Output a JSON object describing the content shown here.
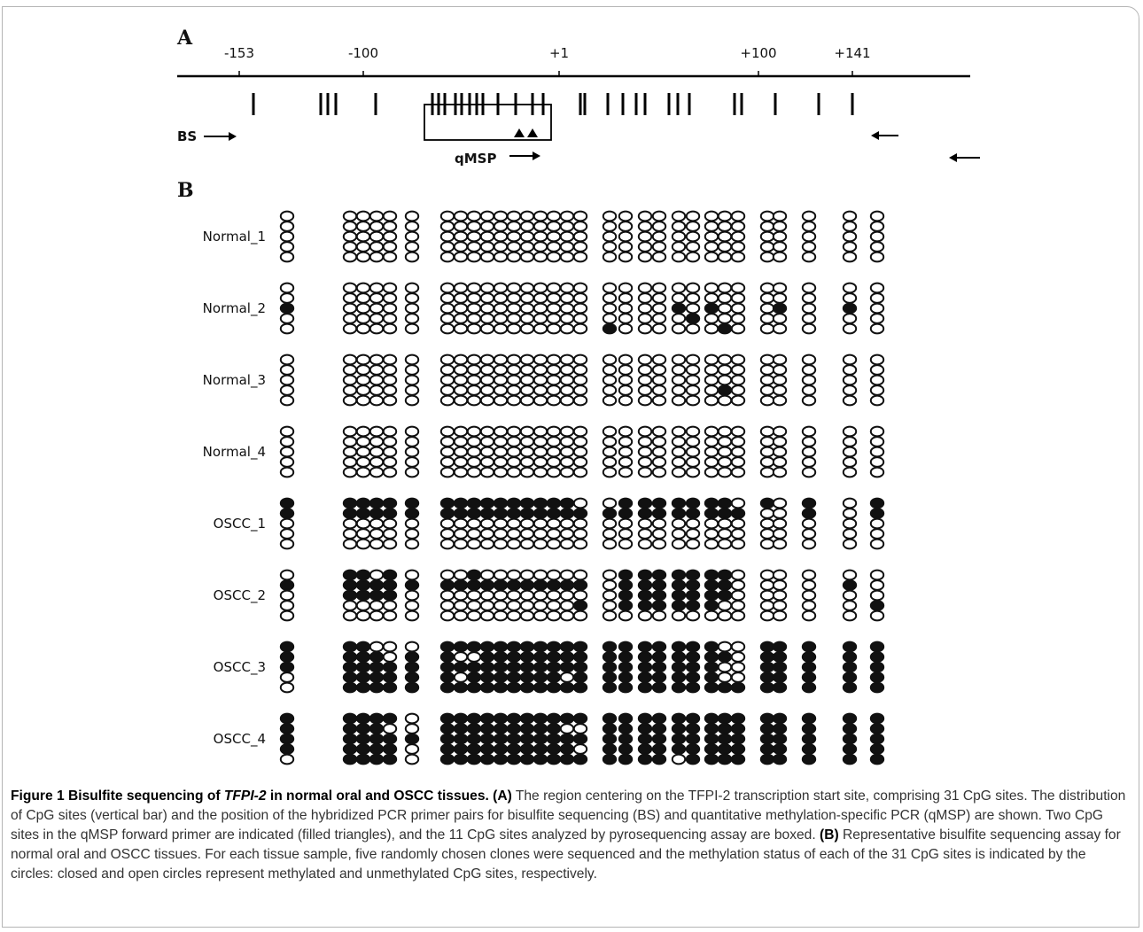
{
  "panel_a": {
    "letter": "A",
    "position_ticks": [
      {
        "label": "-153",
        "pos": -153
      },
      {
        "label": "-100",
        "pos": -100
      },
      {
        "label": "+1",
        "pos": 1
      },
      {
        "label": "+100",
        "pos": 100
      },
      {
        "label": "+141",
        "pos": 141
      }
    ],
    "cpg_sites_count": 31,
    "boxed_sites": 11,
    "bs_label": "BS",
    "qmsp_label": "qMSP"
  },
  "panel_b": {
    "letter": "B",
    "samples": [
      {
        "name": "Normal_1",
        "rows": [
          "U U U U U U U U U U U U U U U U U U U U U U U U U U U U U U U",
          "U U U U U U U U U U U U U U U U U U U U U U U U U U U U U U U",
          "U U U U U U U U U U U U U U U U U U U U U U U U U U U U U U U",
          "U U U U U U U U U U U U U U U U U U U U U U U U U U U U U U U",
          "U U U U U U U U U U U U U U U U U U U U U U U U U U U U U U U"
        ]
      },
      {
        "name": "Normal_2",
        "rows": [
          "U U U U U U U U U U U U U U U U U U U U U U U U U U U U U U U",
          "U U U U U U U U U U U U U U U U U U U U U U U U U U U U U U U",
          "M U U U U U U U U U U U U U U U U U U U U M U M U U U M U M U",
          "U U U U U U U U U U U U U U U U U U U U U U M U U U U U U U U",
          "U U U U U U U U U U U U U U U U U M U U U U U U M U U U U U U"
        ]
      },
      {
        "name": "Normal_3",
        "rows": [
          "U U U U U U U U U U U U U U U U U U U U U U U U U U U U U U U",
          "U U U U U U U U U U U U U U U U U U U U U U U U U U U U U U U",
          "U U U U U U U U U U U U U U U U U U U U U U U U U U U U U U U",
          "U U U U U U U U U U U U U U U U U U U U U U U U M U U U U U U",
          "U U U U U U U U U U U U U U U U U U U U U U U U U U U U U U U"
        ]
      },
      {
        "name": "Normal_4",
        "rows": [
          "U U U U U U U U U U U U U U U U U U U U U U U U U U U U U U U",
          "U U U U U U U U U U U U U U U U U U U U U U U U U U U U U U U",
          "U U U U U U U U U U U U U U U U U U U U U U U U U U U U U U U",
          "U U U U U U U U U U U U U U U U U U U U U U U U U U U U U U U",
          "U U U U U U U U U U U U U U U U U U U U U U U U U U U U U U U"
        ]
      },
      {
        "name": "OSCC_1",
        "rows": [
          "M M M M M M M M M M M M M M M M U U M M M M M M M U M U M U M",
          "M M M M M M M M M M M M M M M M M M M M M M M M M M U U M U M",
          "U U U U U U U U U U U U U U U U U U U U U U U U U U U U U U U",
          "U U U U U U U U U U U U U U U U U U U U U U U U U U U U U U U",
          "U U U U U U U U U U U U U U U U U U U U U U U U U U U U U U U"
        ]
      },
      {
        "name": "OSCC_2",
        "rows": [
          "U M M U M U U U M U U U U U U U U U M M M M M M M U U U U U U",
          "M M M M M M M M M M M M M M M M M U M M M M M M M U U U U M U",
          "U M M M M U U U U U U U U U U U U U M M M M M M M U U U U U U",
          "U U U U U U U U U U U U U U U U M U M M M M M M U U U U U U M",
          "U U U U U U U U U U U U U U U U U U U U U U U U U U U U U U U"
        ]
      },
      {
        "name": "OSCC_3",
        "rows": [
          "M M M U U U M M M M M M M M M M M M M M M M M M U U M M M M M",
          "M M M M U M M U U M M M M M M M M M M M M M M M M U M M M M M",
          "M M M M M M M M M M M M M M M M M M M M M M M M U U M M M M M",
          "U M M M M M M U M M M M M M M U M M M M M M M M U U M M M M M",
          "U M M M M M M M M M M M M M M M M M M M M M M M M M M M M M M"
        ]
      },
      {
        "name": "OSCC_4",
        "rows": [
          "M M M M M U M M M M M M M M M M M M M M M M M M M M M M M M M",
          "M M M M U U M M M M M M M M M U U M M M M M M M M M M M M M M",
          "M M M M M M M M M M M M M M M M M M M M M M M M M M M M M M M",
          "M M M M M U M M M M M M M M M M U M M M M M M M M M M M M M M",
          "U M M M M U M M M M M M M M M M M M M M M U M M M M M M M M M"
        ]
      }
    ]
  },
  "caption": {
    "title_prefix": "Figure 1 Bisulfite sequencing of ",
    "title_gene": "TFPI-2",
    "title_suffix": " in normal oral and OSCC tissues. ",
    "part_a_tag": "(A)",
    "part_a_text": " The region centering on the TFPI-2 transcription start site, comprising 31 CpG sites. The distribution of CpG sites (vertical bar) and the position of the hybridized PCR primer pairs for bisulfite sequencing (BS) and quantitative methylation-specific PCR (qMSP) are shown. Two CpG sites in the qMSP forward primer are indicated (filled triangles), and the 11 CpG sites analyzed by pyrosequencing assay are boxed. ",
    "part_b_tag": "(B)",
    "part_b_text": " Representative bisulfite sequencing assay for normal oral and OSCC tissues. For each tissue sample, five randomly chosen clones were sequenced and the methylation status of each of the 31 CpG sites is indicated by the circles: closed and open circles represent methylated and unmethylated CpG sites, respectively."
  }
}
